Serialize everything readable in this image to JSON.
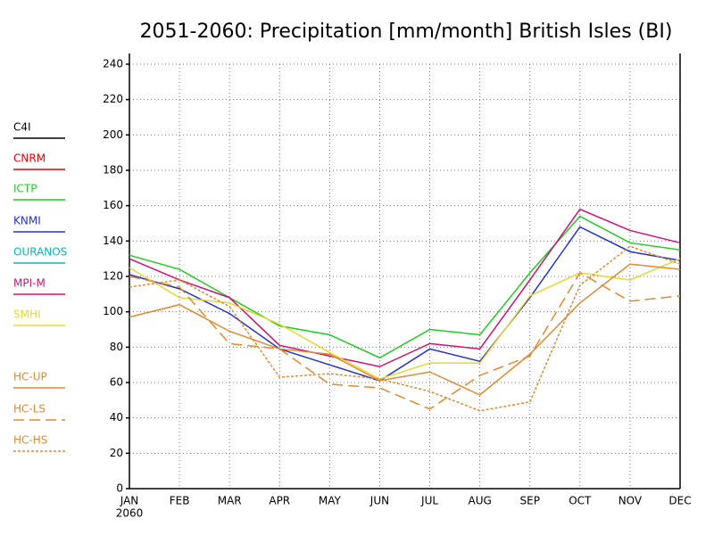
{
  "chart_data": {
    "type": "line",
    "title": "2051-2060: Precipitation [mm/month] British Isles (BI)",
    "categories": [
      "JAN",
      "FEB",
      "MAR",
      "APR",
      "MAY",
      "JUN",
      "JUL",
      "AUG",
      "SEP",
      "OCT",
      "NOV",
      "DEC"
    ],
    "x_year_label": "2060",
    "ylim": [
      0,
      240
    ],
    "yticks": [
      0,
      20,
      40,
      60,
      80,
      100,
      120,
      140,
      160,
      180,
      200,
      220,
      240
    ],
    "grid": true,
    "legend": "left",
    "series": [
      {
        "name": "C4I",
        "color": "#000000",
        "dash": "solid",
        "values": [
          null,
          null,
          null,
          null,
          null,
          null,
          null,
          null,
          null,
          null,
          null,
          null
        ]
      },
      {
        "name": "CNRM",
        "color": "#e00000",
        "dash": "solid",
        "values": [
          null,
          null,
          null,
          null,
          null,
          null,
          null,
          null,
          null,
          null,
          null,
          null
        ]
      },
      {
        "name": "ICTP",
        "color": "#22cc22",
        "dash": "solid",
        "values": [
          132,
          124,
          108,
          92,
          87,
          74,
          90,
          87,
          122,
          154,
          139,
          135
        ]
      },
      {
        "name": "KNMI",
        "color": "#2233cc",
        "dash": "solid",
        "values": [
          121,
          113,
          99,
          79,
          70,
          61,
          79,
          72,
          108,
          148,
          134,
          129
        ]
      },
      {
        "name": "OURANOS",
        "color": "#00bbbb",
        "dash": "solid",
        "values": [
          null,
          null,
          null,
          null,
          null,
          null,
          null,
          null,
          null,
          null,
          null,
          null
        ]
      },
      {
        "name": "MPI-M",
        "color": "#cc1177",
        "dash": "solid",
        "values": [
          130,
          118,
          108,
          81,
          75,
          69,
          82,
          79,
          118,
          158,
          146,
          139
        ]
      },
      {
        "name": "SMHI",
        "color": "#e6d830",
        "dash": "solid",
        "values": [
          125,
          108,
          105,
          93,
          77,
          62,
          71,
          71,
          109,
          122,
          118,
          130
        ]
      },
      {
        "name": "HC-UP",
        "color": "#e08a30",
        "dash": "solid",
        "values": [
          97,
          104,
          89,
          79,
          76,
          61,
          66,
          53,
          76,
          105,
          127,
          124
        ]
      },
      {
        "name": "HC-LS",
        "color": "#e08a30",
        "dash": "long",
        "values": [
          120,
          114,
          82,
          79,
          59,
          57,
          45,
          64,
          75,
          122,
          106,
          109
        ]
      },
      {
        "name": "HC-HS",
        "color": "#e08a30",
        "dash": "short",
        "values": [
          114,
          118,
          103,
          63,
          65,
          62,
          55,
          44,
          49,
          115,
          137,
          127
        ]
      }
    ]
  }
}
